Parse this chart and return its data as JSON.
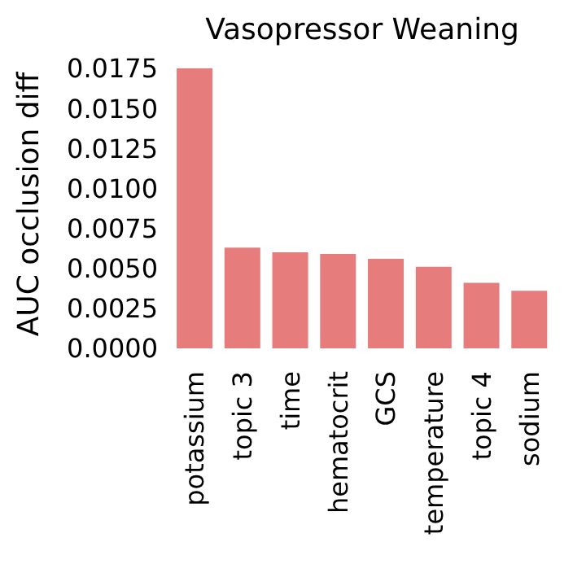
{
  "chart_data": {
    "type": "bar",
    "title": "Vasopressor Weaning",
    "ylabel": "AUC occlusion diff",
    "categories": [
      "potassium",
      "topic 3",
      "time",
      "hematocrit",
      "GCS",
      "temperature",
      "topic 4",
      "sodium"
    ],
    "values": [
      0.0175,
      0.0063,
      0.006,
      0.0059,
      0.0056,
      0.0051,
      0.0041,
      0.0036
    ],
    "color": "#e77c7c",
    "ylim": [
      0,
      0.0175
    ],
    "yticks": [
      {
        "value": 0,
        "label": "0.0000"
      },
      {
        "value": 0.0025,
        "label": "0.0025"
      },
      {
        "value": 0.005,
        "label": "0.0050"
      },
      {
        "value": 0.0075,
        "label": "0.0075"
      },
      {
        "value": 0.01,
        "label": "0.0100"
      },
      {
        "value": 0.0125,
        "label": "0.0125"
      },
      {
        "value": 0.015,
        "label": "0.0150"
      },
      {
        "value": 0.0175,
        "label": "0.0175"
      }
    ],
    "grid": false
  }
}
